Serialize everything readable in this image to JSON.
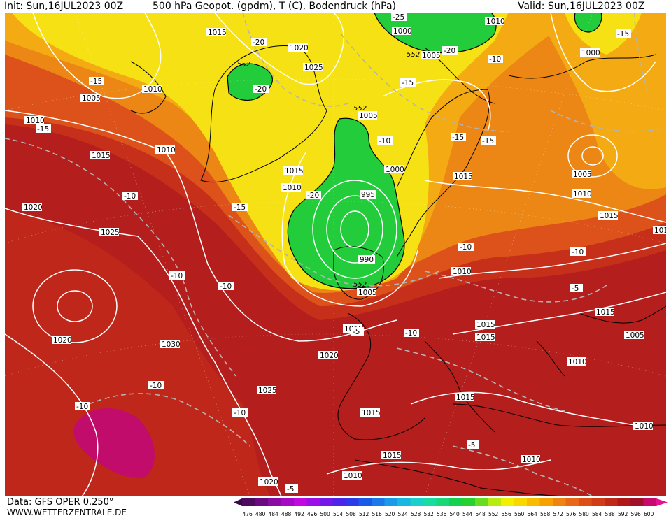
{
  "header": {
    "init": "Init: Sun,16JUL2023 00Z",
    "title": "500 hPa Geopot. (gpdm), T (C), Bodendruck (hPa)",
    "valid": "Valid: Sun,16JUL2023 00Z"
  },
  "footer": {
    "data_source": "Data: GFS OPER 0.250°",
    "website": "WWW.WETTERZENTRALE.DE"
  },
  "legend": {
    "ticks": [
      "476",
      "480",
      "484",
      "488",
      "492",
      "496",
      "500",
      "504",
      "508",
      "512",
      "516",
      "520",
      "524",
      "528",
      "532",
      "536",
      "540",
      "544",
      "548",
      "552",
      "556",
      "560",
      "564",
      "568",
      "572",
      "576",
      "580",
      "584",
      "588",
      "592",
      "596",
      "600"
    ],
    "colors": [
      "#4d0a5e",
      "#6a0a80",
      "#8a0aa6",
      "#a60ac4",
      "#c20ae0",
      "#9a10e6",
      "#7418e8",
      "#4f24ea",
      "#2e3ae8",
      "#1a5ae8",
      "#1a7ae8",
      "#1a9ae8",
      "#1ab8e0",
      "#1ad0c8",
      "#1adca0",
      "#1ad878",
      "#16d050",
      "#2ad030",
      "#68dc20",
      "#b8ec10",
      "#f0f000",
      "#f8d800",
      "#f8bc00",
      "#f8a000",
      "#f08410",
      "#e86818",
      "#dc5018",
      "#d03c18",
      "#c02818",
      "#b01818",
      "#a01028",
      "#c80a70"
    ]
  },
  "map_labels": {
    "pressure": [
      "1015",
      "1020",
      "1025",
      "1010",
      "1005",
      "1010",
      "1010",
      "1015",
      "1020",
      "1025",
      "1030",
      "1020",
      "1015",
      "1010",
      "1005",
      "1000",
      "995",
      "990",
      "1005",
      "1015",
      "1000",
      "1005",
      "1010",
      "1010",
      "1015",
      "1015",
      "1020",
      "1015",
      "1010",
      "1015",
      "1005",
      "1010",
      "1025",
      "1015",
      "1015",
      "1015",
      "1010",
      "1020",
      "1010",
      "1010",
      "1000",
      "1005",
      "1015",
      "1010"
    ],
    "temperature": [
      "-20",
      "-15",
      "-15",
      "-10",
      "-15",
      "-10",
      "-10",
      "-10",
      "-20",
      "-20",
      "-15",
      "-15",
      "-15",
      "-10",
      "-10",
      "-5",
      "-10",
      "-10",
      "-10",
      "-10",
      "-5",
      "-5",
      "-25",
      "-20",
      "-15",
      "-10",
      "-5"
    ],
    "geopotential": [
      "552",
      "552",
      "552",
      "552",
      "552"
    ]
  },
  "colors": {
    "green": "#22cc3a",
    "yellow": "#f4ec10",
    "light_orange": "#f6b40e",
    "orange": "#ec8a14",
    "red_orange": "#dc5418",
    "red": "#c63018",
    "dark_red": "#b01c1c",
    "magenta": "#c00a6a"
  }
}
